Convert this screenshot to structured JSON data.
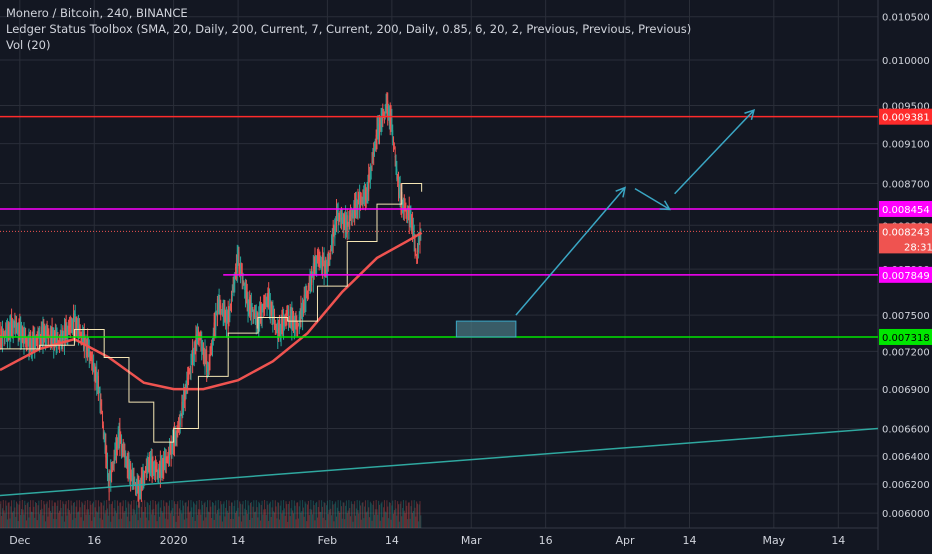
{
  "legend": {
    "symbol_line": "Monero / Bitcoin, 240, BINANCE",
    "indicator_line": "Ledger Status Toolbox (SMA, 20, Daily, 200, Current, 7, Current, 200, Daily, 0.85, 6, 20, 2, Previous, Previous, Previous)",
    "volume_line": "Vol (20)"
  },
  "colors": {
    "background": "#131722",
    "grid": "#2a2e39",
    "axis_text": "#d1d4dc",
    "candle_up": "#26a69a",
    "candle_down": "#ef5350",
    "sma_fast": "#f5e6b5",
    "sma_slow": "#ef5350",
    "resistance_red": "#ff2b2b",
    "magenta": "#ff00ff",
    "green": "#00e600",
    "trend": "#2fa8a0",
    "arrow": "#3aa6c4"
  },
  "chart_data": {
    "type": "candlestick",
    "title": "Monero / Bitcoin, 240, BINANCE",
    "yaxis": {
      "ticks": [
        "0.010500",
        "0.010000",
        "0.009500",
        "0.009100",
        "0.008700",
        "0.008300",
        "0.007900",
        "0.007500",
        "0.007200",
        "0.006900",
        "0.006600",
        "0.006400",
        "0.006200",
        "0.006000"
      ],
      "scale": "log",
      "range": [
        0.0059,
        0.0107
      ]
    },
    "xaxis": {
      "ticks": [
        "Dec",
        "16",
        "2020",
        "14",
        "Feb",
        "14",
        "Mar",
        "16",
        "Apr",
        "14",
        "May",
        "14"
      ],
      "range": [
        "2019-11-27",
        "2020-05-22"
      ]
    },
    "price_series": [
      {
        "date": "2019-11-27",
        "close": 0.0073
      },
      {
        "date": "2019-11-30",
        "close": 0.00742
      },
      {
        "date": "2019-12-03",
        "close": 0.00725
      },
      {
        "date": "2019-12-06",
        "close": 0.00735
      },
      {
        "date": "2019-12-09",
        "close": 0.00728
      },
      {
        "date": "2019-12-12",
        "close": 0.00745
      },
      {
        "date": "2019-12-15",
        "close": 0.0072
      },
      {
        "date": "2019-12-17",
        "close": 0.0069
      },
      {
        "date": "2019-12-19",
        "close": 0.0062
      },
      {
        "date": "2019-12-21",
        "close": 0.00655
      },
      {
        "date": "2019-12-23",
        "close": 0.0063
      },
      {
        "date": "2019-12-25",
        "close": 0.00615
      },
      {
        "date": "2019-12-27",
        "close": 0.00635
      },
      {
        "date": "2019-12-29",
        "close": 0.00628
      },
      {
        "date": "2019-12-31",
        "close": 0.0064
      },
      {
        "date": "2020-01-02",
        "close": 0.0066
      },
      {
        "date": "2020-01-04",
        "close": 0.007
      },
      {
        "date": "2020-01-06",
        "close": 0.00735
      },
      {
        "date": "2020-01-08",
        "close": 0.00705
      },
      {
        "date": "2020-01-10",
        "close": 0.0076
      },
      {
        "date": "2020-01-12",
        "close": 0.00745
      },
      {
        "date": "2020-01-14",
        "close": 0.008
      },
      {
        "date": "2020-01-16",
        "close": 0.0076
      },
      {
        "date": "2020-01-18",
        "close": 0.00745
      },
      {
        "date": "2020-01-20",
        "close": 0.00765
      },
      {
        "date": "2020-01-22",
        "close": 0.00735
      },
      {
        "date": "2020-01-24",
        "close": 0.0075
      },
      {
        "date": "2020-01-26",
        "close": 0.0074
      },
      {
        "date": "2020-01-28",
        "close": 0.0077
      },
      {
        "date": "2020-01-30",
        "close": 0.008
      },
      {
        "date": "2020-02-01",
        "close": 0.0079
      },
      {
        "date": "2020-02-03",
        "close": 0.0084
      },
      {
        "date": "2020-02-05",
        "close": 0.0083
      },
      {
        "date": "2020-02-07",
        "close": 0.0085
      },
      {
        "date": "2020-02-09",
        "close": 0.0086
      },
      {
        "date": "2020-02-11",
        "close": 0.0092
      },
      {
        "date": "2020-02-13",
        "close": 0.0095
      },
      {
        "date": "2020-02-14",
        "close": 0.0093
      },
      {
        "date": "2020-02-15",
        "close": 0.0088
      },
      {
        "date": "2020-02-16",
        "close": 0.0085
      },
      {
        "date": "2020-02-18",
        "close": 0.00835
      },
      {
        "date": "2020-02-19",
        "close": 0.008
      },
      {
        "date": "2020-02-20",
        "close": 0.0083
      }
    ],
    "sma_fast": [
      {
        "date": "2019-11-27",
        "value": 0.00722
      },
      {
        "date": "2019-12-05",
        "value": 0.00725
      },
      {
        "date": "2019-12-12",
        "value": 0.00738
      },
      {
        "date": "2019-12-18",
        "value": 0.00715
      },
      {
        "date": "2019-12-23",
        "value": 0.0068
      },
      {
        "date": "2019-12-28",
        "value": 0.0065
      },
      {
        "date": "2020-01-01",
        "value": 0.0066
      },
      {
        "date": "2020-01-06",
        "value": 0.007
      },
      {
        "date": "2020-01-12",
        "value": 0.00735
      },
      {
        "date": "2020-01-18",
        "value": 0.00748
      },
      {
        "date": "2020-01-24",
        "value": 0.00745
      },
      {
        "date": "2020-01-30",
        "value": 0.00775
      },
      {
        "date": "2020-02-05",
        "value": 0.00815
      },
      {
        "date": "2020-02-11",
        "value": 0.0085
      },
      {
        "date": "2020-02-16",
        "value": 0.0087
      },
      {
        "date": "2020-02-20",
        "value": 0.00862
      }
    ],
    "sma_slow": [
      {
        "date": "2019-11-27",
        "value": 0.00705
      },
      {
        "date": "2019-12-05",
        "value": 0.00722
      },
      {
        "date": "2019-12-12",
        "value": 0.0073
      },
      {
        "date": "2019-12-19",
        "value": 0.00715
      },
      {
        "date": "2019-12-26",
        "value": 0.00695
      },
      {
        "date": "2020-01-01",
        "value": 0.0069
      },
      {
        "date": "2020-01-07",
        "value": 0.0069
      },
      {
        "date": "2020-01-14",
        "value": 0.00697
      },
      {
        "date": "2020-01-21",
        "value": 0.00712
      },
      {
        "date": "2020-01-28",
        "value": 0.00735
      },
      {
        "date": "2020-02-04",
        "value": 0.0077
      },
      {
        "date": "2020-02-11",
        "value": 0.008
      },
      {
        "date": "2020-02-17",
        "value": 0.00815
      },
      {
        "date": "2020-02-20",
        "value": 0.00823
      }
    ],
    "horizontal_levels": [
      {
        "label": "0.009381",
        "value": 0.009381,
        "color": "#ff2b2b"
      },
      {
        "label": "0.008454",
        "value": 0.008454,
        "color": "#ff00ff"
      },
      {
        "label": "0.007849",
        "value": 0.007849,
        "color": "#ff00ff"
      },
      {
        "label": "0.007318",
        "value": 0.007318,
        "color": "#00e600"
      }
    ],
    "last_price": {
      "label": "0.008243",
      "value": 0.008243,
      "countdown": "28:31"
    },
    "trendline": [
      {
        "date": "2019-11-27",
        "value": 0.00612
      },
      {
        "date": "2020-05-22",
        "value": 0.0066
      }
    ],
    "projection_box": {
      "from": "2020-02-27",
      "to": "2020-03-10",
      "low": 0.007318,
      "high": 0.00745
    },
    "projection_arrows": [
      {
        "from": {
          "date": "2020-03-10",
          "value": 0.0075
        },
        "to": {
          "date": "2020-04-01",
          "value": 0.00866
        }
      },
      {
        "from": {
          "date": "2020-04-03",
          "value": 0.00865
        },
        "to": {
          "date": "2020-04-10",
          "value": 0.00845
        }
      },
      {
        "from": {
          "date": "2020-04-11",
          "value": 0.0086
        },
        "to": {
          "date": "2020-04-27",
          "value": 0.00945
        }
      }
    ]
  }
}
